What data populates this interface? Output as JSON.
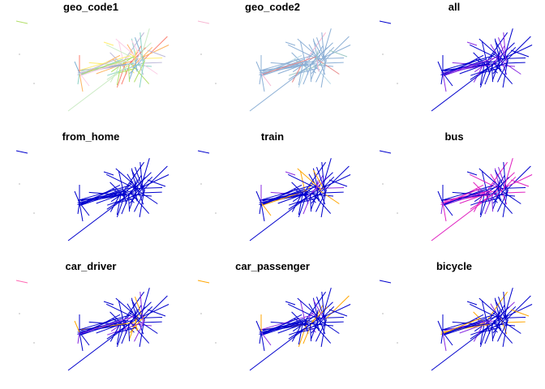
{
  "chart_data": {
    "type": "line",
    "panels": [
      {
        "title": "geo_code1",
        "palette": "categorical"
      },
      {
        "title": "geo_code2",
        "palette": "pastel"
      },
      {
        "title": "all",
        "palette": "blue-violet"
      },
      {
        "title": "from_home",
        "palette": "blue"
      },
      {
        "title": "train",
        "palette": "blue-orange"
      },
      {
        "title": "bus",
        "palette": "blue-magenta"
      },
      {
        "title": "car_driver",
        "palette": "blue-orange"
      },
      {
        "title": "car_passenger",
        "palette": "blue-orange"
      },
      {
        "title": "bicycle",
        "palette": "blue-orange"
      }
    ],
    "legend_position": "top-left",
    "grid": false,
    "colors": {
      "low": "#0000cd",
      "mid_violet": "#8a2be2",
      "magenta": "#e020c0",
      "pink": "#ff69b4",
      "orange": "#ffa500",
      "categorical": [
        "#b3de69",
        "#bebada",
        "#fb8072",
        "#80b1d3",
        "#fdb462",
        "#fccde5",
        "#8dd3c7",
        "#ccebc5",
        "#ffed6f"
      ],
      "pastel_main": "#8db0d6",
      "pastel_alt": [
        "#f7b6d2",
        "#9ec9c5",
        "#b8d8e8",
        "#e88888"
      ]
    }
  }
}
